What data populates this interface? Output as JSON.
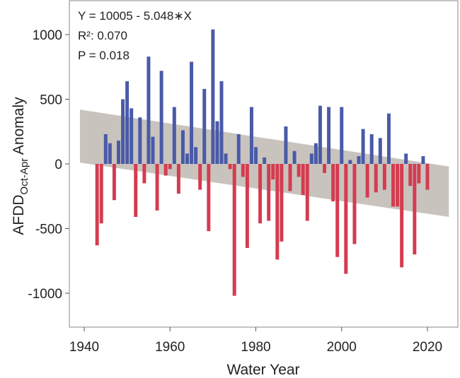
{
  "chart_data": {
    "type": "bar",
    "title": "",
    "xlabel": "Water Year",
    "ylabel": {
      "main": "AFDD",
      "subscript": "Oct-Apr",
      "suffix": "Anomaly"
    },
    "xlim": [
      1937,
      2027
    ],
    "ylim": [
      -1250,
      1200
    ],
    "xticks": [
      "1940",
      "1960",
      "1980",
      "2000",
      "2020"
    ],
    "yticks": [
      "1000",
      "500",
      "0",
      "-500",
      "-1000"
    ],
    "colors": {
      "positive": "#4a5aa8",
      "negative": "#d43c50",
      "band": "#c8c3bd"
    },
    "annotations": [
      "Y = 10005 - 5.048∗X",
      "R²: 0.070",
      "P = 0.018"
    ],
    "regression": {
      "intercept": 10005,
      "slope": -5.048,
      "x_range": [
        1939,
        2025
      ]
    },
    "confidence_band": {
      "upper": [
        [
          1939,
          420
        ],
        [
          2025,
          -20
        ]
      ],
      "lower": [
        [
          1939,
          10
        ],
        [
          2025,
          -410
        ]
      ]
    },
    "years": [
      1943,
      1944,
      1945,
      1946,
      1947,
      1948,
      1949,
      1950,
      1951,
      1952,
      1953,
      1954,
      1955,
      1956,
      1957,
      1958,
      1959,
      1960,
      1961,
      1962,
      1963,
      1964,
      1965,
      1966,
      1967,
      1968,
      1969,
      1970,
      1971,
      1972,
      1973,
      1974,
      1975,
      1976,
      1977,
      1978,
      1979,
      1980,
      1981,
      1982,
      1983,
      1984,
      1985,
      1986,
      1987,
      1988,
      1989,
      1990,
      1991,
      1992,
      1993,
      1994,
      1995,
      1996,
      1997,
      1998,
      1999,
      2000,
      2001,
      2002,
      2003,
      2004,
      2005,
      2006,
      2007,
      2008,
      2009,
      2010,
      2011,
      2012,
      2013,
      2014,
      2015,
      2016,
      2017,
      2018,
      2019,
      2020,
      2021
    ],
    "values": [
      -630,
      -460,
      230,
      160,
      -280,
      180,
      500,
      640,
      430,
      -410,
      360,
      -150,
      830,
      210,
      -360,
      720,
      -90,
      -40,
      440,
      -230,
      260,
      80,
      790,
      130,
      -200,
      580,
      -520,
      1040,
      330,
      640,
      80,
      -40,
      -1020,
      230,
      -100,
      -650,
      440,
      130,
      -460,
      50,
      -440,
      -120,
      -740,
      -600,
      290,
      -210,
      100,
      -100,
      -240,
      -440,
      80,
      160,
      450,
      -70,
      440,
      -290,
      -720,
      440,
      -850,
      30,
      -620,
      60,
      270,
      -260,
      230,
      -220,
      200,
      -200,
      390,
      -330,
      -330,
      -800,
      80,
      -170,
      -700,
      -150,
      60,
      -200,
      0
    ]
  }
}
